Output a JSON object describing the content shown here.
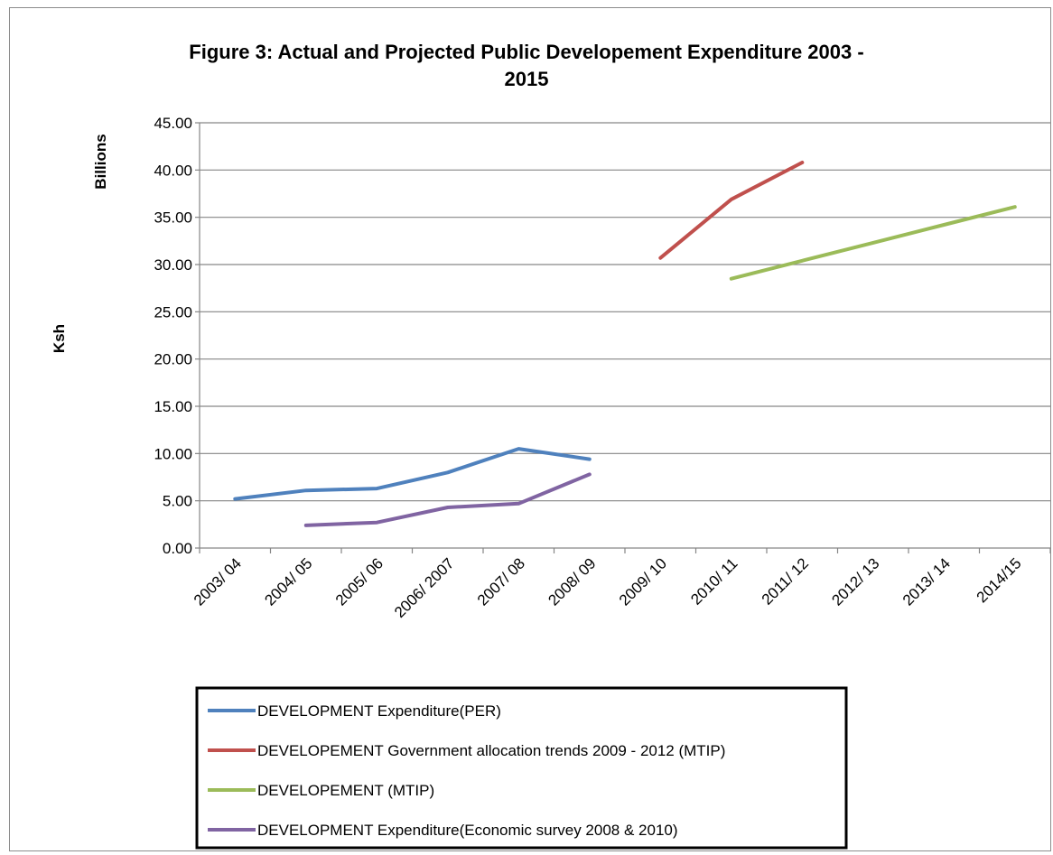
{
  "chart_data": {
    "type": "line",
    "title_lines": [
      "Figure 3: Actual and Projected Public Developement Expenditure 2003 -",
      "2015"
    ],
    "ylabel": "Ksh",
    "yunit_label": "Billions",
    "ylim": [
      0,
      45
    ],
    "yticks": [
      "0.00",
      "5.00",
      "10.00",
      "15.00",
      "20.00",
      "25.00",
      "30.00",
      "35.00",
      "40.00",
      "45.00"
    ],
    "grid": true,
    "legend_position": "bottom",
    "categories": [
      "2003/ 04",
      "2004/ 05",
      "2005/ 06",
      "2006/ 2007",
      "2007/ 08",
      "2008/ 09",
      "2009/ 10",
      "2010/ 11",
      "2011/ 12",
      "2012/ 13",
      "2013/ 14",
      "2014/15"
    ],
    "series": [
      {
        "name": "DEVELOPMENT Expenditure(PER)",
        "color": "#4f81bd",
        "values": [
          5.2,
          6.1,
          6.3,
          8.0,
          10.5,
          9.4,
          null,
          null,
          null,
          null,
          null,
          null
        ]
      },
      {
        "name": "DEVELOPEMENT Government allocation trends 2009 - 2012 (MTIP)",
        "color": "#c0504d",
        "values": [
          null,
          null,
          null,
          null,
          null,
          null,
          30.7,
          36.9,
          40.8,
          null,
          null,
          null
        ]
      },
      {
        "name": "DEVELOPEMENT (MTIP)",
        "color": "#9bbb59",
        "values": [
          null,
          null,
          null,
          null,
          null,
          null,
          null,
          28.5,
          30.4,
          32.3,
          34.2,
          36.1
        ]
      },
      {
        "name": "DEVELOPMENT Expenditure(Economic survey 2008 & 2010)",
        "color": "#8064a2",
        "values": [
          null,
          2.4,
          2.7,
          4.3,
          4.7,
          7.8,
          null,
          null,
          null,
          null,
          null,
          null
        ]
      }
    ]
  }
}
